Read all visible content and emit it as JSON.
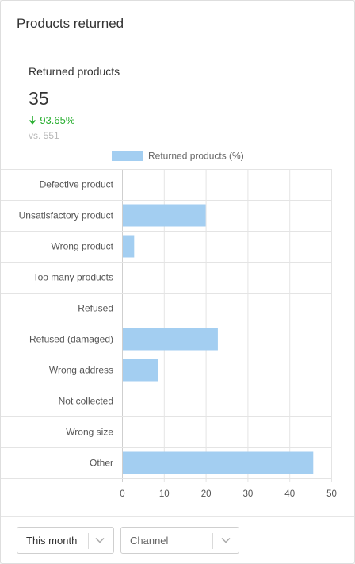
{
  "card": {
    "title": "Products returned"
  },
  "widget": {
    "title": "Returned products",
    "value": "35",
    "change": "-93.65%",
    "compare": "vs. 551"
  },
  "filters": {
    "period": {
      "selected": "This month"
    },
    "channel": {
      "placeholder": "Channel"
    }
  },
  "icons": {
    "change": "arrow-down-icon",
    "dropdown": "chevron-down-icon"
  },
  "colors": {
    "bar": "#a3cef1",
    "positive": "#27ae2f"
  },
  "chart_data": {
    "type": "bar",
    "orientation": "horizontal",
    "categories": [
      "Defective product",
      "Unsatisfactory product",
      "Wrong product",
      "Too many products",
      "Refused",
      "Refused (damaged)",
      "Wrong address",
      "Not collected",
      "Wrong size",
      "Other"
    ],
    "series": [
      {
        "name": "Returned products (%)",
        "values": [
          0,
          20,
          2.9,
          0,
          0,
          22.9,
          8.6,
          0,
          0,
          45.7
        ]
      }
    ],
    "xlim": [
      0,
      50
    ],
    "xticks": [
      "0",
      "10",
      "20",
      "30",
      "40",
      "50"
    ],
    "grid": true,
    "legend": "top"
  }
}
